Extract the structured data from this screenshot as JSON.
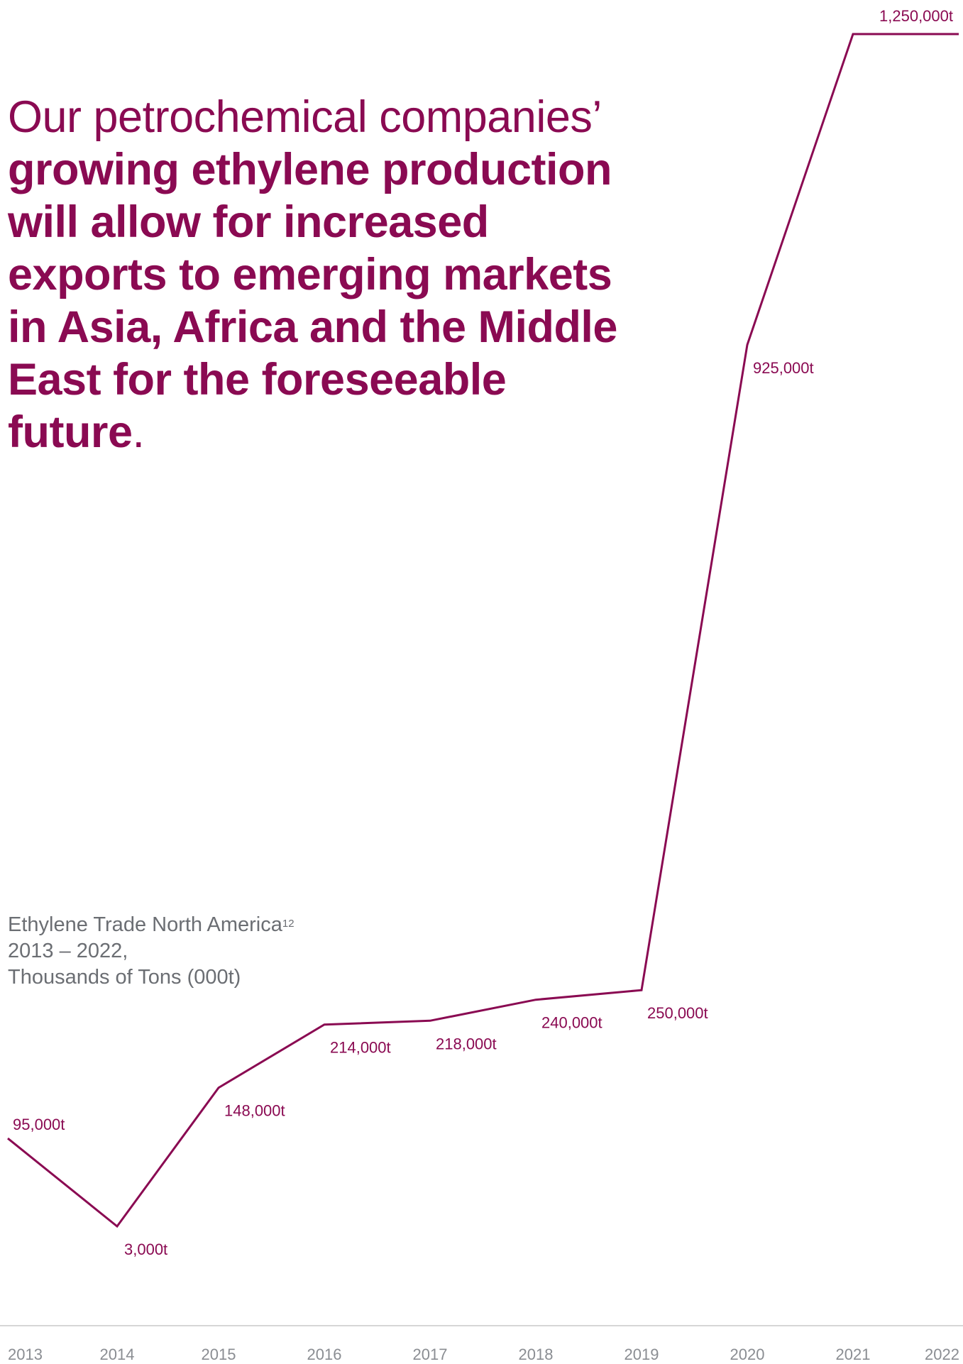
{
  "headline": {
    "light": "Our petrochemical companies’",
    "bold": "growing ethylene production will allow for increased exports to emerging markets in Asia, Africa and the Middle East for the foreseeable future",
    "end": "."
  },
  "caption": {
    "line1": "Ethylene Trade North America",
    "footnote": "12",
    "line2": "2013 – 2022,",
    "line3": "Thousands of Tons (000t)"
  },
  "colors": {
    "accent": "#8a0a52",
    "axis_text": "#8a8d92",
    "caption_text": "#6b6e73",
    "baseline": "#d6d6d6"
  },
  "chart_data": {
    "type": "line",
    "title": "Ethylene Trade North America",
    "subtitle": "2013 – 2022, Thousands of Tons (000t)",
    "x": [
      "2013",
      "2014",
      "2015",
      "2016",
      "2017",
      "2018",
      "2019",
      "2020",
      "2021",
      "2022"
    ],
    "series": [
      {
        "values": [
          95000,
          3000,
          148000,
          214000,
          218000,
          240000,
          250000,
          925000,
          1250000,
          1250000
        ]
      }
    ],
    "data_labels": [
      "95,000t",
      "3,000t",
      "148,000t",
      "214,000t",
      "218,000t",
      "240,000t",
      "250,000t",
      "925,000t",
      "1,250,000t",
      null
    ],
    "ylim": [
      0,
      1250000
    ],
    "grid": false,
    "legend": "none"
  }
}
